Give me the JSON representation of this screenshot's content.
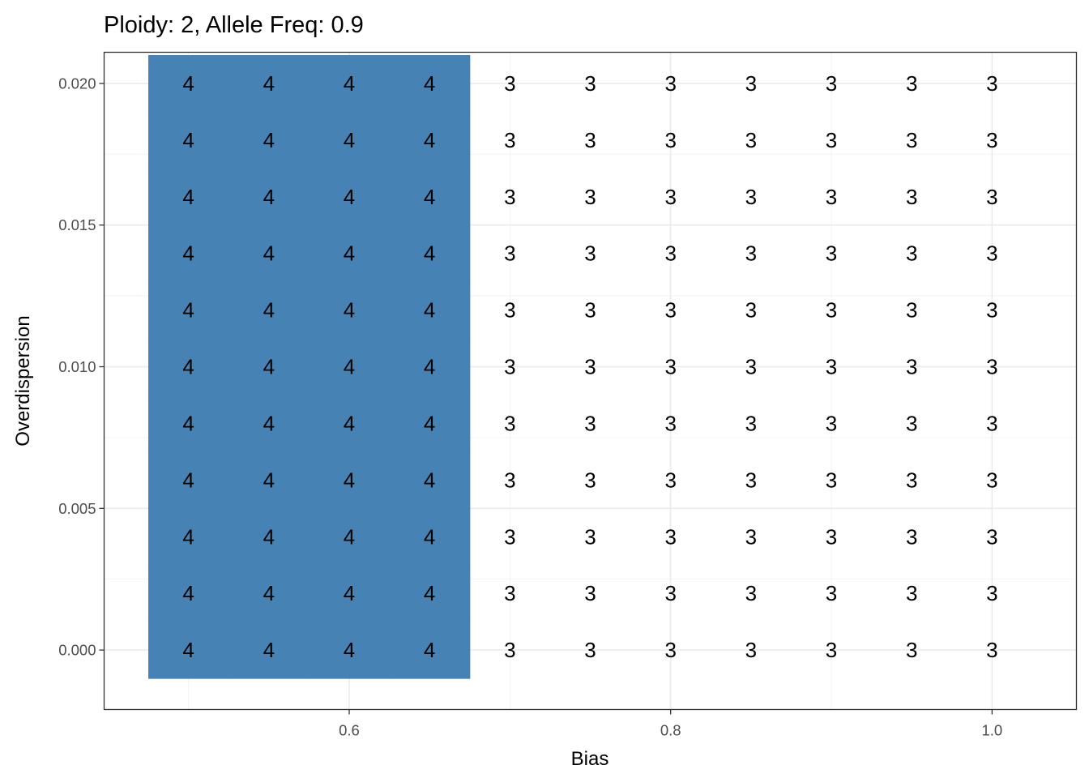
{
  "chart_data": {
    "type": "heatmap",
    "title": "Ploidy: 2, Allele Freq: 0.9",
    "xlabel": "Bias",
    "ylabel": "Overdispersion",
    "x": [
      0.5,
      0.55,
      0.6,
      0.65,
      0.7,
      0.75,
      0.8,
      0.85,
      0.9,
      0.95,
      1.0
    ],
    "y": [
      0.0,
      0.002,
      0.004,
      0.006,
      0.008,
      0.01,
      0.012,
      0.014,
      0.016,
      0.018,
      0.02
    ],
    "values": [
      [
        4,
        4,
        4,
        4,
        3,
        3,
        3,
        3,
        3,
        3,
        3
      ],
      [
        4,
        4,
        4,
        4,
        3,
        3,
        3,
        3,
        3,
        3,
        3
      ],
      [
        4,
        4,
        4,
        4,
        3,
        3,
        3,
        3,
        3,
        3,
        3
      ],
      [
        4,
        4,
        4,
        4,
        3,
        3,
        3,
        3,
        3,
        3,
        3
      ],
      [
        4,
        4,
        4,
        4,
        3,
        3,
        3,
        3,
        3,
        3,
        3
      ],
      [
        4,
        4,
        4,
        4,
        3,
        3,
        3,
        3,
        3,
        3,
        3
      ],
      [
        4,
        4,
        4,
        4,
        3,
        3,
        3,
        3,
        3,
        3,
        3
      ],
      [
        4,
        4,
        4,
        4,
        3,
        3,
        3,
        3,
        3,
        3,
        3
      ],
      [
        4,
        4,
        4,
        4,
        3,
        3,
        3,
        3,
        3,
        3,
        3
      ],
      [
        4,
        4,
        4,
        4,
        3,
        3,
        3,
        3,
        3,
        3,
        3
      ],
      [
        4,
        4,
        4,
        4,
        3,
        3,
        3,
        3,
        3,
        3,
        3
      ]
    ],
    "highlight_value": 4,
    "highlight_color": "#4682B4",
    "xticks": [
      0.6,
      0.8,
      1.0
    ],
    "xtick_labels": [
      "0.6",
      "0.8",
      "1.0"
    ],
    "yticks": [
      0.0,
      0.005,
      0.01,
      0.015,
      0.02
    ],
    "ytick_labels": [
      "0.000",
      "0.005",
      "0.010",
      "0.015",
      "0.020"
    ],
    "xlim": [
      0.4475,
      1.0525
    ],
    "ylim": [
      -0.0021,
      0.0211
    ],
    "grid": true,
    "legend": "none"
  }
}
